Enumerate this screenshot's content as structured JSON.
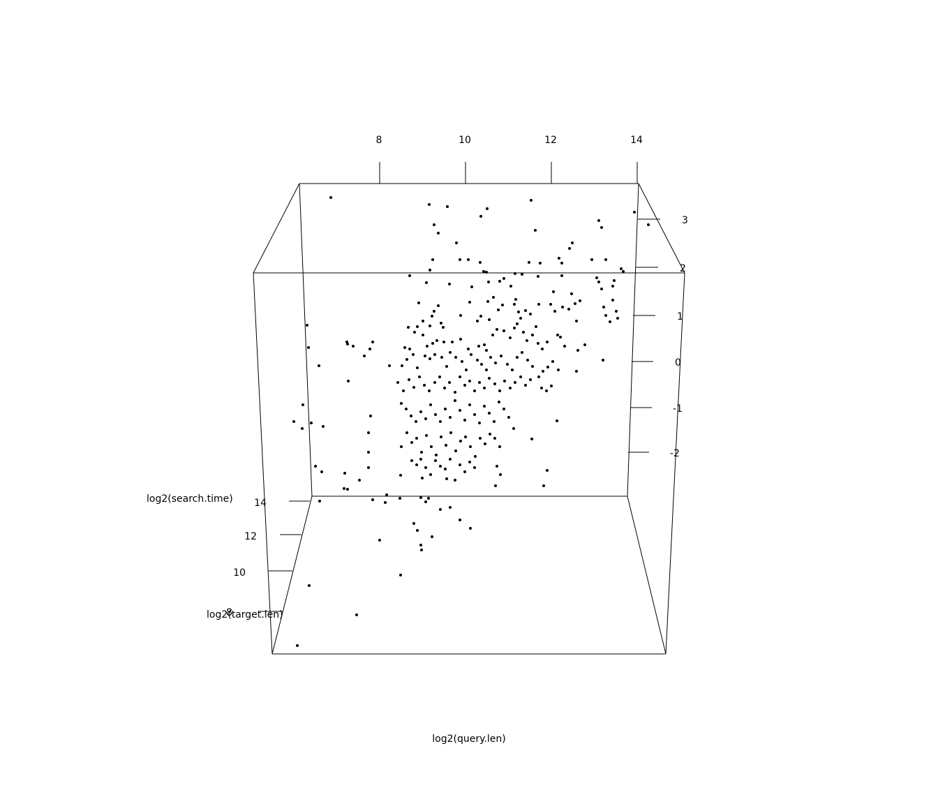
{
  "chart_data": {
    "type": "scatter",
    "projection": "3d",
    "title": "",
    "axes": {
      "x": {
        "label": "log2(query.len)",
        "ticks": [
          "8",
          "10",
          "12",
          "14"
        ]
      },
      "y": {
        "label": "log2(target.len)",
        "ticks": [
          "8",
          "10",
          "12",
          "14"
        ]
      },
      "z": {
        "label": "log2(search.time)",
        "ticks": [
          "-2",
          "-1",
          "0",
          "1",
          "2",
          "3"
        ]
      }
    },
    "point_color": "#000000",
    "points_screen_note": "points are shown in projected view",
    "points": [
      [
        474,
        283
      ],
      [
        615,
        293
      ],
      [
        641,
        296
      ],
      [
        698,
        299
      ],
      [
        689,
        310
      ],
      [
        761,
        287
      ],
      [
        909,
        304
      ],
      [
        929,
        322
      ],
      [
        858,
        316
      ],
      [
        862,
        326
      ],
      [
        622,
        322
      ],
      [
        628,
        334
      ],
      [
        767,
        330
      ],
      [
        654,
        348
      ],
      [
        820,
        348
      ],
      [
        816,
        356
      ],
      [
        620,
        372
      ],
      [
        659,
        372
      ],
      [
        671,
        372
      ],
      [
        688,
        376
      ],
      [
        697,
        390
      ],
      [
        693,
        389
      ],
      [
        801,
        370
      ],
      [
        805,
        377
      ],
      [
        848,
        372
      ],
      [
        868,
        372
      ],
      [
        758,
        376
      ],
      [
        774,
        377
      ],
      [
        738,
        392
      ],
      [
        748,
        393
      ],
      [
        771,
        396
      ],
      [
        616,
        387
      ],
      [
        611,
        405
      ],
      [
        644,
        407
      ],
      [
        587,
        395
      ],
      [
        676,
        411
      ],
      [
        890,
        385
      ],
      [
        893,
        389
      ],
      [
        855,
        398
      ],
      [
        858,
        404
      ],
      [
        880,
        402
      ],
      [
        878,
        410
      ],
      [
        862,
        414
      ],
      [
        716,
        403
      ],
      [
        700,
        404
      ],
      [
        722,
        399
      ],
      [
        805,
        395
      ],
      [
        819,
        421
      ],
      [
        732,
        410
      ],
      [
        793,
        418
      ],
      [
        707,
        426
      ],
      [
        673,
        433
      ],
      [
        699,
        432
      ],
      [
        720,
        437
      ],
      [
        714,
        444
      ],
      [
        739,
        429
      ],
      [
        737,
        436
      ],
      [
        600,
        434
      ],
      [
        628,
        438
      ],
      [
        622,
        446
      ],
      [
        619,
        453
      ],
      [
        606,
        460
      ],
      [
        616,
        467
      ],
      [
        632,
        463
      ],
      [
        635,
        469
      ],
      [
        660,
        452
      ],
      [
        689,
        453
      ],
      [
        684,
        460
      ],
      [
        701,
        458
      ],
      [
        743,
        447
      ],
      [
        753,
        445
      ],
      [
        760,
        450
      ],
      [
        768,
        468
      ],
      [
        772,
        436
      ],
      [
        789,
        436
      ],
      [
        795,
        446
      ],
      [
        806,
        440
      ],
      [
        815,
        443
      ],
      [
        824,
        435
      ],
      [
        831,
        431
      ],
      [
        865,
        440
      ],
      [
        878,
        430
      ],
      [
        883,
        446
      ],
      [
        885,
        456
      ],
      [
        868,
        452
      ],
      [
        874,
        461
      ],
      [
        440,
        466
      ],
      [
        442,
        498
      ],
      [
        457,
        524
      ],
      [
        497,
        490
      ],
      [
        498,
        493
      ],
      [
        506,
        496
      ],
      [
        534,
        490
      ],
      [
        530,
        500
      ],
      [
        522,
        510
      ],
      [
        558,
        524
      ],
      [
        499,
        546
      ],
      [
        585,
        469
      ],
      [
        598,
        468
      ],
      [
        594,
        476
      ],
      [
        606,
        480
      ],
      [
        580,
        498
      ],
      [
        587,
        500
      ],
      [
        612,
        496
      ],
      [
        620,
        492
      ],
      [
        626,
        488
      ],
      [
        636,
        490
      ],
      [
        648,
        490
      ],
      [
        660,
        486
      ],
      [
        671,
        500
      ],
      [
        686,
        496
      ],
      [
        694,
        494
      ],
      [
        697,
        502
      ],
      [
        706,
        480
      ],
      [
        712,
        472
      ],
      [
        722,
        474
      ],
      [
        731,
        484
      ],
      [
        737,
        470
      ],
      [
        741,
        464
      ],
      [
        746,
        456
      ],
      [
        750,
        476
      ],
      [
        755,
        488
      ],
      [
        763,
        480
      ],
      [
        771,
        492
      ],
      [
        777,
        500
      ],
      [
        784,
        490
      ],
      [
        799,
        480
      ],
      [
        803,
        483
      ],
      [
        809,
        496
      ],
      [
        828,
        502
      ],
      [
        838,
        494
      ],
      [
        826,
        460
      ],
      [
        864,
        516
      ],
      [
        826,
        532
      ],
      [
        576,
        524
      ],
      [
        583,
        515
      ],
      [
        592,
        508
      ],
      [
        598,
        527
      ],
      [
        609,
        510
      ],
      [
        616,
        514
      ],
      [
        623,
        508
      ],
      [
        633,
        512
      ],
      [
        640,
        525
      ],
      [
        645,
        505
      ],
      [
        653,
        512
      ],
      [
        662,
        518
      ],
      [
        668,
        530
      ],
      [
        675,
        508
      ],
      [
        684,
        516
      ],
      [
        690,
        522
      ],
      [
        697,
        530
      ],
      [
        703,
        512
      ],
      [
        710,
        520
      ],
      [
        718,
        510
      ],
      [
        727,
        522
      ],
      [
        734,
        530
      ],
      [
        741,
        512
      ],
      [
        748,
        505
      ],
      [
        756,
        516
      ],
      [
        763,
        525
      ],
      [
        772,
        540
      ],
      [
        778,
        532
      ],
      [
        785,
        526
      ],
      [
        792,
        518
      ],
      [
        800,
        530
      ],
      [
        570,
        548
      ],
      [
        578,
        560
      ],
      [
        586,
        544
      ],
      [
        593,
        555
      ],
      [
        601,
        540
      ],
      [
        608,
        552
      ],
      [
        615,
        560
      ],
      [
        623,
        548
      ],
      [
        630,
        540
      ],
      [
        637,
        556
      ],
      [
        644,
        548
      ],
      [
        652,
        562
      ],
      [
        659,
        540
      ],
      [
        666,
        552
      ],
      [
        673,
        546
      ],
      [
        680,
        560
      ],
      [
        687,
        548
      ],
      [
        694,
        556
      ],
      [
        701,
        542
      ],
      [
        709,
        550
      ],
      [
        716,
        560
      ],
      [
        723,
        546
      ],
      [
        731,
        556
      ],
      [
        738,
        548
      ],
      [
        746,
        540
      ],
      [
        753,
        552
      ],
      [
        760,
        544
      ],
      [
        776,
        556
      ],
      [
        783,
        560
      ],
      [
        790,
        553
      ],
      [
        434,
        580
      ],
      [
        421,
        604
      ],
      [
        433,
        614
      ],
      [
        446,
        606
      ],
      [
        463,
        611
      ],
      [
        531,
        596
      ],
      [
        528,
        620
      ],
      [
        575,
        578
      ],
      [
        582,
        586
      ],
      [
        589,
        596
      ],
      [
        596,
        604
      ],
      [
        603,
        590
      ],
      [
        610,
        600
      ],
      [
        617,
        580
      ],
      [
        624,
        594
      ],
      [
        631,
        604
      ],
      [
        638,
        586
      ],
      [
        645,
        598
      ],
      [
        652,
        574
      ],
      [
        659,
        588
      ],
      [
        666,
        602
      ],
      [
        673,
        580
      ],
      [
        680,
        594
      ],
      [
        687,
        606
      ],
      [
        694,
        582
      ],
      [
        701,
        592
      ],
      [
        708,
        604
      ],
      [
        715,
        576
      ],
      [
        722,
        586
      ],
      [
        729,
        598
      ],
      [
        736,
        614
      ],
      [
        798,
        603
      ],
      [
        762,
        629
      ],
      [
        575,
        640
      ],
      [
        583,
        620
      ],
      [
        590,
        634
      ],
      [
        597,
        628
      ],
      [
        604,
        648
      ],
      [
        611,
        624
      ],
      [
        618,
        640
      ],
      [
        625,
        652
      ],
      [
        632,
        626
      ],
      [
        639,
        638
      ],
      [
        646,
        620
      ],
      [
        653,
        646
      ],
      [
        660,
        632
      ],
      [
        667,
        626
      ],
      [
        674,
        640
      ],
      [
        681,
        654
      ],
      [
        688,
        628
      ],
      [
        695,
        636
      ],
      [
        702,
        622
      ],
      [
        709,
        628
      ],
      [
        716,
        640
      ],
      [
        528,
        648
      ],
      [
        452,
        668
      ],
      [
        461,
        676
      ],
      [
        528,
        670
      ],
      [
        515,
        688
      ],
      [
        494,
        678
      ],
      [
        493,
        700
      ],
      [
        498,
        701
      ],
      [
        590,
        660
      ],
      [
        597,
        666
      ],
      [
        603,
        658
      ],
      [
        610,
        670
      ],
      [
        617,
        680
      ],
      [
        624,
        660
      ],
      [
        631,
        668
      ],
      [
        638,
        672
      ],
      [
        645,
        658
      ],
      [
        652,
        688
      ],
      [
        659,
        666
      ],
      [
        666,
        676
      ],
      [
        673,
        662
      ],
      [
        680,
        670
      ],
      [
        712,
        668
      ],
      [
        717,
        680
      ],
      [
        710,
        696
      ],
      [
        784,
        674
      ],
      [
        779,
        696
      ],
      [
        574,
        681
      ],
      [
        605,
        685
      ],
      [
        640,
        686
      ],
      [
        458,
        718
      ],
      [
        534,
        716
      ],
      [
        554,
        709
      ],
      [
        552,
        720
      ],
      [
        573,
        714
      ],
      [
        603,
        713
      ],
      [
        614,
        714
      ],
      [
        610,
        719
      ],
      [
        631,
        730
      ],
      [
        645,
        727
      ],
      [
        659,
        745
      ],
      [
        674,
        757
      ],
      [
        593,
        750
      ],
      [
        598,
        760
      ],
      [
        619,
        769
      ],
      [
        603,
        781
      ],
      [
        604,
        788
      ],
      [
        544,
        774
      ],
      [
        574,
        824
      ],
      [
        443,
        839
      ],
      [
        511,
        881
      ],
      [
        426,
        925
      ]
    ]
  }
}
